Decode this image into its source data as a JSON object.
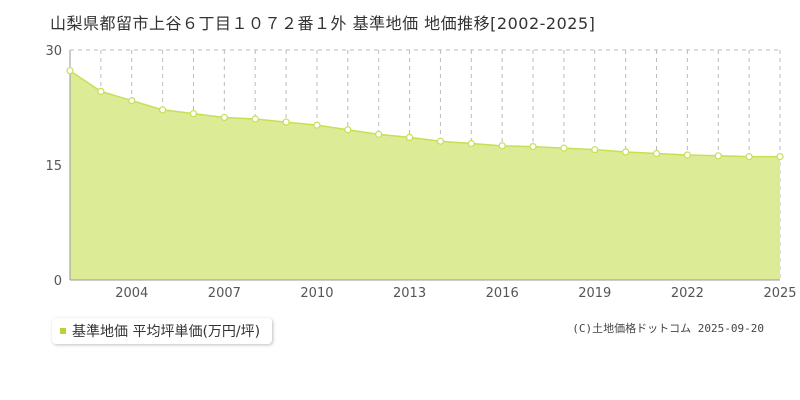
{
  "page_title": "山梨県都留市上谷６丁目１０７２番１外 基準地価 地価推移[2002-2025]",
  "legend_label": "基準地価 平均坪単価(万円/坪)",
  "copyright": "(C)土地価格ドットコム 2025-09-20",
  "colors": {
    "fill": "#dcec96",
    "line": "#c7df55",
    "point_fill": "#ffffff",
    "swatch": "#b5d33a",
    "grid": "#bbbbbb"
  },
  "chart_data": {
    "type": "area",
    "x": [
      2002,
      2003,
      2004,
      2005,
      2006,
      2007,
      2008,
      2009,
      2010,
      2011,
      2012,
      2013,
      2014,
      2015,
      2016,
      2017,
      2018,
      2019,
      2020,
      2021,
      2022,
      2023,
      2024,
      2025
    ],
    "series": [
      {
        "name": "基準地価 平均坪単価(万円/坪)",
        "values": [
          27.3,
          24.6,
          23.4,
          22.2,
          21.7,
          21.2,
          21.0,
          20.6,
          20.2,
          19.6,
          19.0,
          18.6,
          18.1,
          17.8,
          17.5,
          17.4,
          17.2,
          17.0,
          16.7,
          16.5,
          16.3,
          16.2,
          16.1,
          16.1
        ]
      }
    ],
    "xlim": [
      2002,
      2025
    ],
    "ylim": [
      0,
      30
    ],
    "y_ticks": [
      0,
      15,
      30
    ],
    "x_ticks": [
      2004,
      2007,
      2010,
      2013,
      2016,
      2019,
      2022,
      2025
    ],
    "grid": true
  }
}
